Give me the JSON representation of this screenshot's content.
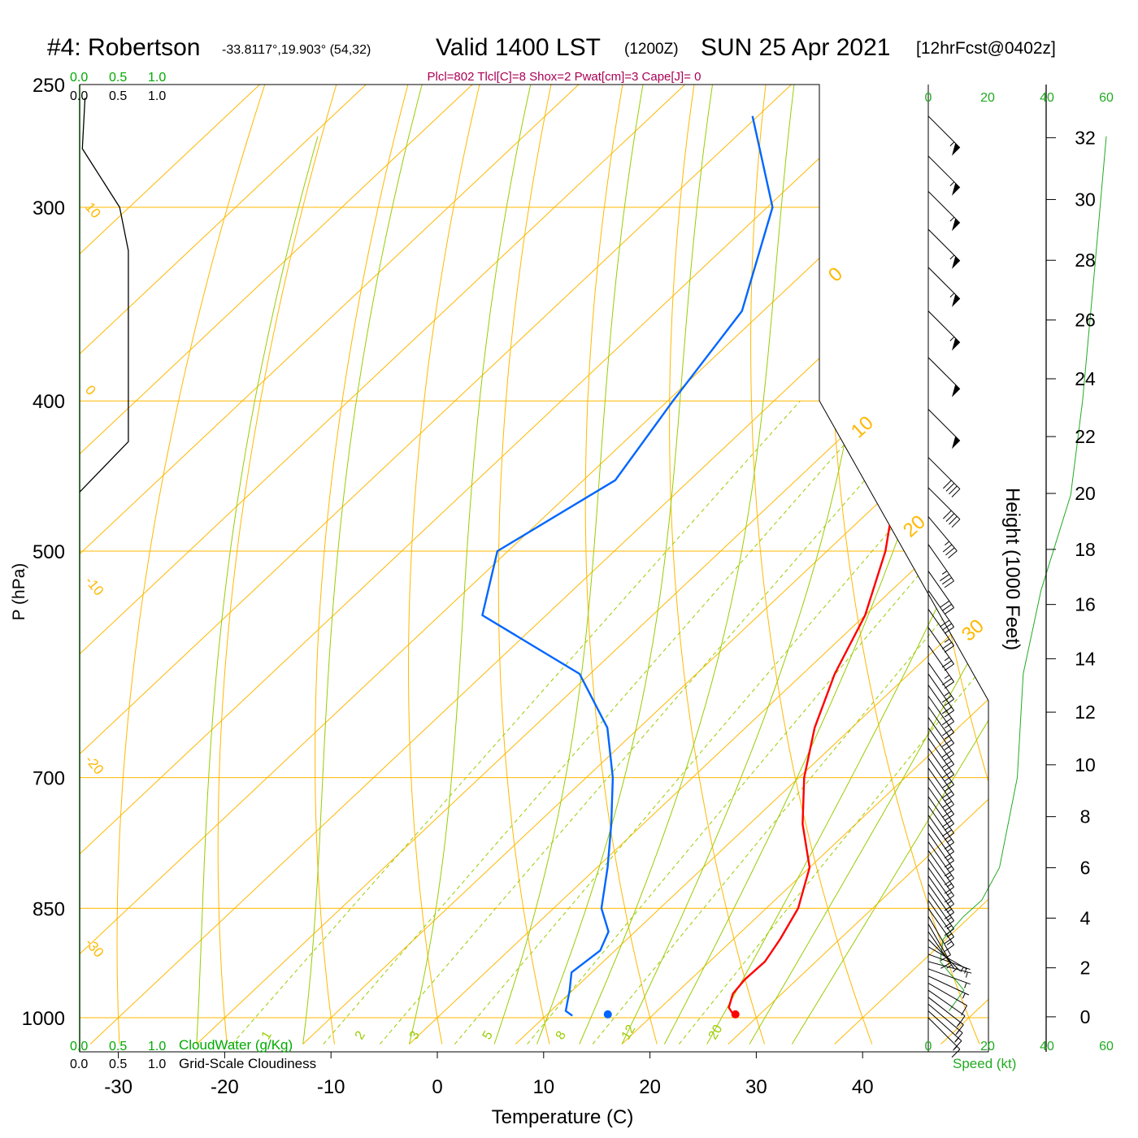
{
  "header": {
    "station": "#4: Robertson",
    "coords": "-33.8117°,19.903° (54,32)",
    "valid": "Valid 1400 LST",
    "zulu": "(1200Z)",
    "date": "SUN 25 Apr 2021",
    "forecast": "[12hrFcst@0402z]",
    "indices": "Plcl=802 Tlcl[C]=8 Shox=2 Pwat[cm]=3 Cape[J]= 0"
  },
  "colors": {
    "temperature": "#ff0000",
    "dewpoint": "#0066ff",
    "isobar": "#ffb800",
    "isotherm": "#ffb800",
    "dry_adiabat": "#ffb800",
    "moist_adiabat": "#99cc00",
    "mixing_ratio": "#99cc00",
    "cloud_axis": "#00aa00",
    "speed_profile": "#22aa22",
    "title_indices": "#aa0055",
    "black": "#000000"
  },
  "chart_data": {
    "type": "line",
    "title": "#4: Robertson -33.8117°,19.903° (54,32) Valid 1400 LST (1200Z) SUN 25 Apr 2021 [12hrFcst@0402z]",
    "xlabel": "Temperature (C)",
    "ylabel": "P (hPa)",
    "xlim": [
      -35,
      55
    ],
    "ylim": [
      1030,
      250
    ],
    "x_ticks": [
      "-30",
      "-20",
      "-10",
      "0",
      "10",
      "20",
      "30",
      "40"
    ],
    "pressure_ticks": [
      "250",
      "300",
      "400",
      "500",
      "700",
      "850",
      "1000"
    ],
    "height_axis": {
      "label": "Height (1000 Feet)",
      "ticks": [
        "0",
        "2",
        "4",
        "6",
        "8",
        "10",
        "12",
        "14",
        "16",
        "18",
        "20",
        "22",
        "24",
        "26",
        "28",
        "30",
        "32"
      ]
    },
    "isotherm_labels": [
      "10",
      "0",
      "-10",
      "-20",
      "-30"
    ],
    "right_temp_labels": [
      "0",
      "10",
      "20",
      "30"
    ],
    "mixing_ratio_labels": [
      "1",
      "2",
      "3",
      "5",
      "8",
      "12",
      "20"
    ],
    "cloud_axis": {
      "ticks": [
        "0.0",
        "0.5",
        "1.0"
      ],
      "cloudwater_label": "CloudWater (g/Kg)",
      "cloudiness_label": "Grid-Scale Cloudiness",
      "cloudiness_profile": [
        {
          "p": 255,
          "v": 0.08
        },
        {
          "p": 275,
          "v": 0.04
        },
        {
          "p": 300,
          "v": 0.6
        },
        {
          "p": 320,
          "v": 0.73
        },
        {
          "p": 425,
          "v": 0.73
        },
        {
          "p": 458,
          "v": 0.0
        }
      ]
    },
    "speed_axis": {
      "label": "Speed (kt)",
      "ticks": [
        "0",
        "20",
        "40",
        "60"
      ],
      "profile": [
        {
          "p": 990,
          "s": 7
        },
        {
          "p": 960,
          "s": 12
        },
        {
          "p": 920,
          "s": 4
        },
        {
          "p": 890,
          "s": 5
        },
        {
          "p": 860,
          "s": 12
        },
        {
          "p": 840,
          "s": 18
        },
        {
          "p": 800,
          "s": 24
        },
        {
          "p": 700,
          "s": 30
        },
        {
          "p": 600,
          "s": 32
        },
        {
          "p": 530,
          "s": 38
        },
        {
          "p": 460,
          "s": 48
        },
        {
          "p": 400,
          "s": 52
        },
        {
          "p": 330,
          "s": 56
        },
        {
          "p": 270,
          "s": 60
        }
      ]
    },
    "series": [
      {
        "name": "Temperature",
        "points": [
          {
            "p": 997,
            "t": 27.7
          },
          {
            "p": 985,
            "t": 26.4
          },
          {
            "p": 965,
            "t": 25.4
          },
          {
            "p": 945,
            "t": 25.1
          },
          {
            "p": 920,
            "t": 25.2
          },
          {
            "p": 890,
            "t": 24.4
          },
          {
            "p": 850,
            "t": 23.0
          },
          {
            "p": 800,
            "t": 20.0
          },
          {
            "p": 750,
            "t": 15.0
          },
          {
            "p": 700,
            "t": 10.5
          },
          {
            "p": 650,
            "t": 6.5
          },
          {
            "p": 600,
            "t": 3.0
          },
          {
            "p": 550,
            "t": 0.0
          },
          {
            "p": 500,
            "t": -4.5
          },
          {
            "p": 450,
            "t": -10.5
          },
          {
            "p": 400,
            "t": -16.5
          },
          {
            "p": 350,
            "t": -23.0
          },
          {
            "p": 300,
            "t": -31.5
          },
          {
            "p": 262,
            "t": -40.5
          }
        ]
      },
      {
        "name": "Dewpoint",
        "points": [
          {
            "p": 997,
            "t": 12.5
          },
          {
            "p": 990,
            "t": 11.4
          },
          {
            "p": 960,
            "t": 9.7
          },
          {
            "p": 935,
            "t": 8.1
          },
          {
            "p": 905,
            "t": 8.6
          },
          {
            "p": 880,
            "t": 7.5
          },
          {
            "p": 850,
            "t": 4.5
          },
          {
            "p": 800,
            "t": 1.0
          },
          {
            "p": 750,
            "t": -3.0
          },
          {
            "p": 700,
            "t": -7.5
          },
          {
            "p": 650,
            "t": -13.0
          },
          {
            "p": 600,
            "t": -21.0
          },
          {
            "p": 550,
            "t": -36.0
          },
          {
            "p": 500,
            "t": -41.0
          },
          {
            "p": 450,
            "t": -37.0
          },
          {
            "p": 400,
            "t": -39.5
          },
          {
            "p": 350,
            "t": -42.0
          },
          {
            "p": 300,
            "t": -49.5
          },
          {
            "p": 262,
            "t": -60.5
          }
        ]
      },
      {
        "name": "Surface dewpoint",
        "points": [
          {
            "p": 995,
            "t": 15.7
          }
        ]
      },
      {
        "name": "Surface temperature",
        "points": [
          {
            "p": 995,
            "t": 27.7
          }
        ]
      }
    ],
    "wind_barbs": [
      {
        "p": 1000,
        "dir": 315,
        "kt": 15
      },
      {
        "p": 990,
        "dir": 312,
        "kt": 15
      },
      {
        "p": 980,
        "dir": 310,
        "kt": 15
      },
      {
        "p": 970,
        "dir": 308,
        "kt": 15
      },
      {
        "p": 960,
        "dir": 305,
        "kt": 12
      },
      {
        "p": 950,
        "dir": 300,
        "kt": 10
      },
      {
        "p": 940,
        "dir": 295,
        "kt": 8
      },
      {
        "p": 930,
        "dir": 290,
        "kt": 5
      },
      {
        "p": 920,
        "dir": 285,
        "kt": 5
      },
      {
        "p": 910,
        "dir": 290,
        "kt": 5
      },
      {
        "p": 900,
        "dir": 300,
        "kt": 5
      },
      {
        "p": 890,
        "dir": 315,
        "kt": 5
      },
      {
        "p": 880,
        "dir": 325,
        "kt": 5
      },
      {
        "p": 870,
        "dir": 330,
        "kt": 10
      },
      {
        "p": 860,
        "dir": 330,
        "kt": 10
      },
      {
        "p": 850,
        "dir": 325,
        "kt": 15
      },
      {
        "p": 840,
        "dir": 325,
        "kt": 15
      },
      {
        "p": 830,
        "dir": 325,
        "kt": 15
      },
      {
        "p": 820,
        "dir": 325,
        "kt": 15
      },
      {
        "p": 810,
        "dir": 325,
        "kt": 15
      },
      {
        "p": 800,
        "dir": 325,
        "kt": 15
      },
      {
        "p": 790,
        "dir": 325,
        "kt": 15
      },
      {
        "p": 780,
        "dir": 325,
        "kt": 15
      },
      {
        "p": 770,
        "dir": 325,
        "kt": 15
      },
      {
        "p": 760,
        "dir": 325,
        "kt": 15
      },
      {
        "p": 750,
        "dir": 325,
        "kt": 15
      },
      {
        "p": 740,
        "dir": 325,
        "kt": 15
      },
      {
        "p": 730,
        "dir": 325,
        "kt": 15
      },
      {
        "p": 720,
        "dir": 325,
        "kt": 20
      },
      {
        "p": 710,
        "dir": 325,
        "kt": 20
      },
      {
        "p": 700,
        "dir": 325,
        "kt": 20
      },
      {
        "p": 690,
        "dir": 325,
        "kt": 20
      },
      {
        "p": 680,
        "dir": 325,
        "kt": 20
      },
      {
        "p": 670,
        "dir": 325,
        "kt": 20
      },
      {
        "p": 660,
        "dir": 325,
        "kt": 20
      },
      {
        "p": 650,
        "dir": 325,
        "kt": 20
      },
      {
        "p": 640,
        "dir": 325,
        "kt": 20
      },
      {
        "p": 630,
        "dir": 325,
        "kt": 20
      },
      {
        "p": 620,
        "dir": 325,
        "kt": 20
      },
      {
        "p": 610,
        "dir": 325,
        "kt": 20
      },
      {
        "p": 600,
        "dir": 325,
        "kt": 20
      },
      {
        "p": 590,
        "dir": 325,
        "kt": 25
      },
      {
        "p": 575,
        "dir": 325,
        "kt": 25
      },
      {
        "p": 560,
        "dir": 325,
        "kt": 25
      },
      {
        "p": 545,
        "dir": 325,
        "kt": 25
      },
      {
        "p": 530,
        "dir": 325,
        "kt": 30
      },
      {
        "p": 515,
        "dir": 325,
        "kt": 30
      },
      {
        "p": 495,
        "dir": 325,
        "kt": 35
      },
      {
        "p": 475,
        "dir": 320,
        "kt": 35
      },
      {
        "p": 455,
        "dir": 315,
        "kt": 40
      },
      {
        "p": 435,
        "dir": 315,
        "kt": 40
      },
      {
        "p": 405,
        "dir": 315,
        "kt": 50
      },
      {
        "p": 375,
        "dir": 315,
        "kt": 50
      },
      {
        "p": 350,
        "dir": 315,
        "kt": 55
      },
      {
        "p": 328,
        "dir": 315,
        "kt": 55
      },
      {
        "p": 310,
        "dir": 315,
        "kt": 55
      },
      {
        "p": 293,
        "dir": 315,
        "kt": 55
      },
      {
        "p": 278,
        "dir": 315,
        "kt": 55
      },
      {
        "p": 262,
        "dir": 315,
        "kt": 55
      }
    ]
  }
}
